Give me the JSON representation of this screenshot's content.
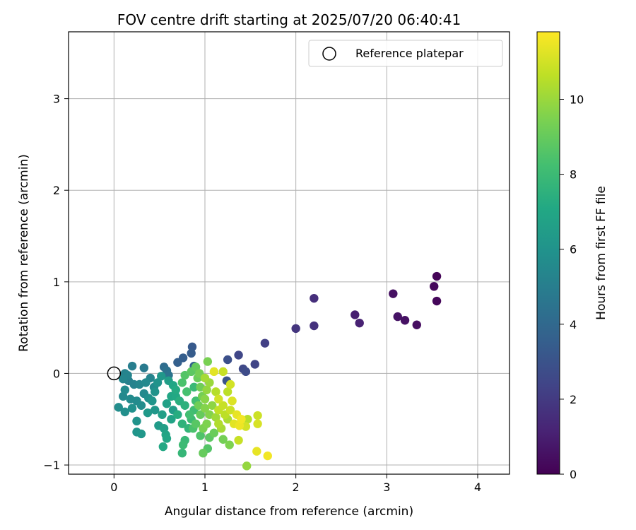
{
  "chart_data": {
    "type": "scatter",
    "title": "FOV centre drift starting at 2025/07/20 06:40:41",
    "xlabel": "Angular distance from reference (arcmin)",
    "ylabel": "Rotation from reference (arcmin)",
    "xlim": [
      -0.5,
      4.35
    ],
    "ylim": [
      -1.1,
      3.73
    ],
    "xticks": [
      0,
      1,
      2,
      3,
      4
    ],
    "yticks": [
      -1,
      0,
      1,
      2,
      3
    ],
    "grid": true,
    "legend": {
      "position": "top-right",
      "entries": [
        "Reference platepar"
      ]
    },
    "reference_point": {
      "x": 0,
      "y": 0,
      "label": "Reference platepar"
    },
    "colorbar": {
      "label": "Hours from first FF file",
      "range": [
        0,
        11.8
      ],
      "ticks": [
        0,
        2,
        4,
        6,
        8,
        10
      ],
      "colormap": "viridis"
    },
    "points": [
      {
        "x": 3.55,
        "y": 1.06,
        "t": 0.15
      },
      {
        "x": 3.52,
        "y": 0.95,
        "t": 0.25
      },
      {
        "x": 3.55,
        "y": 0.79,
        "t": 0.2
      },
      {
        "x": 3.07,
        "y": 0.87,
        "t": 0.5
      },
      {
        "x": 3.12,
        "y": 0.62,
        "t": 0.6
      },
      {
        "x": 3.2,
        "y": 0.58,
        "t": 0.55
      },
      {
        "x": 3.33,
        "y": 0.53,
        "t": 0.45
      },
      {
        "x": 2.65,
        "y": 0.64,
        "t": 1.0
      },
      {
        "x": 2.7,
        "y": 0.55,
        "t": 1.1
      },
      {
        "x": 2.2,
        "y": 0.82,
        "t": 1.6
      },
      {
        "x": 2.2,
        "y": 0.52,
        "t": 1.7
      },
      {
        "x": 2.0,
        "y": 0.49,
        "t": 1.8
      },
      {
        "x": 1.66,
        "y": 0.33,
        "t": 2.2
      },
      {
        "x": 1.37,
        "y": 0.2,
        "t": 2.5
      },
      {
        "x": 1.55,
        "y": 0.1,
        "t": 2.4
      },
      {
        "x": 1.42,
        "y": 0.05,
        "t": 2.6
      },
      {
        "x": 1.45,
        "y": 0.02,
        "t": 2.7
      },
      {
        "x": 1.25,
        "y": 0.15,
        "t": 2.9
      },
      {
        "x": 1.24,
        "y": -0.08,
        "t": 3.0
      },
      {
        "x": 0.86,
        "y": 0.29,
        "t": 3.3
      },
      {
        "x": 0.85,
        "y": 0.22,
        "t": 3.4
      },
      {
        "x": 0.76,
        "y": 0.17,
        "t": 3.5
      },
      {
        "x": 0.7,
        "y": 0.12,
        "t": 3.6
      },
      {
        "x": 0.88,
        "y": 0.08,
        "t": 3.7
      },
      {
        "x": 0.55,
        "y": 0.07,
        "t": 4.2
      },
      {
        "x": 0.58,
        "y": 0.03,
        "t": 4.4
      },
      {
        "x": 0.6,
        "y": -0.02,
        "t": 4.5
      },
      {
        "x": 0.33,
        "y": 0.06,
        "t": 4.8
      },
      {
        "x": 0.2,
        "y": 0.08,
        "t": 5.0
      },
      {
        "x": 0.12,
        "y": 0.0,
        "t": 5.2
      },
      {
        "x": 0.15,
        "y": -0.02,
        "t": 5.3
      },
      {
        "x": 0.1,
        "y": -0.06,
        "t": 5.4
      },
      {
        "x": 0.12,
        "y": -0.18,
        "t": 5.6
      },
      {
        "x": 0.1,
        "y": -0.25,
        "t": 5.5
      },
      {
        "x": 0.05,
        "y": -0.37,
        "t": 5.7
      },
      {
        "x": 0.12,
        "y": -0.42,
        "t": 5.8
      },
      {
        "x": 0.2,
        "y": -0.38,
        "t": 5.9
      },
      {
        "x": 0.25,
        "y": -0.3,
        "t": 5.6
      },
      {
        "x": 0.3,
        "y": -0.35,
        "t": 5.7
      },
      {
        "x": 0.33,
        "y": -0.22,
        "t": 5.5
      },
      {
        "x": 0.28,
        "y": -0.12,
        "t": 5.4
      },
      {
        "x": 0.35,
        "y": -0.1,
        "t": 5.5
      },
      {
        "x": 0.4,
        "y": -0.05,
        "t": 5.3
      },
      {
        "x": 0.44,
        "y": -0.15,
        "t": 5.6
      },
      {
        "x": 0.38,
        "y": -0.27,
        "t": 5.8
      },
      {
        "x": 0.25,
        "y": -0.52,
        "t": 6.0
      },
      {
        "x": 0.25,
        "y": -0.64,
        "t": 6.1
      },
      {
        "x": 0.3,
        "y": -0.66,
        "t": 6.2
      },
      {
        "x": 0.37,
        "y": -0.43,
        "t": 6.3
      },
      {
        "x": 0.45,
        "y": -0.4,
        "t": 6.2
      },
      {
        "x": 0.49,
        "y": -0.57,
        "t": 6.4
      },
      {
        "x": 0.55,
        "y": -0.6,
        "t": 6.6
      },
      {
        "x": 0.57,
        "y": -0.67,
        "t": 6.9
      },
      {
        "x": 0.58,
        "y": -0.71,
        "t": 7.0
      },
      {
        "x": 0.54,
        "y": -0.8,
        "t": 7.1
      },
      {
        "x": 0.63,
        "y": -0.5,
        "t": 6.8
      },
      {
        "x": 0.65,
        "y": -0.4,
        "t": 6.5
      },
      {
        "x": 0.48,
        "y": -0.1,
        "t": 6.0
      },
      {
        "x": 0.52,
        "y": -0.03,
        "t": 6.2
      },
      {
        "x": 0.6,
        "y": -0.08,
        "t": 6.5
      },
      {
        "x": 0.65,
        "y": -0.13,
        "t": 7.0
      },
      {
        "x": 0.68,
        "y": -0.18,
        "t": 7.2
      },
      {
        "x": 0.63,
        "y": -0.25,
        "t": 7.0
      },
      {
        "x": 0.72,
        "y": -0.3,
        "t": 7.4
      },
      {
        "x": 0.78,
        "y": -0.35,
        "t": 7.5
      },
      {
        "x": 0.7,
        "y": -0.45,
        "t": 7.3
      },
      {
        "x": 0.75,
        "y": -0.55,
        "t": 7.6
      },
      {
        "x": 0.82,
        "y": -0.6,
        "t": 7.7
      },
      {
        "x": 0.78,
        "y": -0.73,
        "t": 7.9
      },
      {
        "x": 0.76,
        "y": -0.78,
        "t": 8.0
      },
      {
        "x": 0.75,
        "y": -0.87,
        "t": 7.8
      },
      {
        "x": 0.85,
        "y": -0.5,
        "t": 8.0
      },
      {
        "x": 0.88,
        "y": -0.4,
        "t": 8.1
      },
      {
        "x": 0.9,
        "y": -0.3,
        "t": 8.2
      },
      {
        "x": 0.8,
        "y": -0.2,
        "t": 8.3
      },
      {
        "x": 0.75,
        "y": -0.1,
        "t": 8.4
      },
      {
        "x": 0.78,
        "y": -0.02,
        "t": 8.6
      },
      {
        "x": 0.85,
        "y": 0.02,
        "t": 8.8
      },
      {
        "x": 0.9,
        "y": 0.07,
        "t": 9.0
      },
      {
        "x": 0.92,
        "y": -0.05,
        "t": 9.1
      },
      {
        "x": 0.95,
        "y": -0.15,
        "t": 9.2
      },
      {
        "x": 0.97,
        "y": -0.25,
        "t": 9.3
      },
      {
        "x": 0.93,
        "y": -0.35,
        "t": 9.2
      },
      {
        "x": 0.95,
        "y": -0.45,
        "t": 9.0
      },
      {
        "x": 0.9,
        "y": -0.55,
        "t": 8.7
      },
      {
        "x": 0.98,
        "y": -0.6,
        "t": 9.4
      },
      {
        "x": 0.95,
        "y": -0.68,
        "t": 8.5
      },
      {
        "x": 0.98,
        "y": -0.87,
        "t": 9.0
      },
      {
        "x": 1.03,
        "y": -0.82,
        "t": 8.6
      },
      {
        "x": 1.05,
        "y": -0.7,
        "t": 8.8
      },
      {
        "x": 1.1,
        "y": -0.65,
        "t": 9.1
      },
      {
        "x": 1.02,
        "y": -0.55,
        "t": 9.5
      },
      {
        "x": 1.05,
        "y": -0.45,
        "t": 9.6
      },
      {
        "x": 1.08,
        "y": -0.35,
        "t": 9.8
      },
      {
        "x": 1.0,
        "y": -0.28,
        "t": 9.7
      },
      {
        "x": 1.02,
        "y": -0.18,
        "t": 9.9
      },
      {
        "x": 1.05,
        "y": -0.1,
        "t": 10.0
      },
      {
        "x": 1.0,
        "y": -0.05,
        "t": 10.2
      },
      {
        "x": 1.03,
        "y": 0.13,
        "t": 9.4
      },
      {
        "x": 1.1,
        "y": 0.02,
        "t": 11.3
      },
      {
        "x": 1.2,
        "y": 0.02,
        "t": 10.8
      },
      {
        "x": 1.12,
        "y": -0.2,
        "t": 10.5
      },
      {
        "x": 1.15,
        "y": -0.28,
        "t": 11.0
      },
      {
        "x": 1.2,
        "y": -0.35,
        "t": 10.8
      },
      {
        "x": 1.22,
        "y": -0.45,
        "t": 10.6
      },
      {
        "x": 1.15,
        "y": -0.55,
        "t": 10.4
      },
      {
        "x": 1.18,
        "y": -0.6,
        "t": 10.2
      },
      {
        "x": 1.25,
        "y": -0.5,
        "t": 10.3
      },
      {
        "x": 1.28,
        "y": -0.4,
        "t": 10.9
      },
      {
        "x": 1.3,
        "y": -0.3,
        "t": 11.2
      },
      {
        "x": 1.35,
        "y": -0.45,
        "t": 11.4
      },
      {
        "x": 1.32,
        "y": -0.55,
        "t": 11.3
      },
      {
        "x": 1.4,
        "y": -0.5,
        "t": 11.6
      },
      {
        "x": 1.38,
        "y": -0.57,
        "t": 11.5
      },
      {
        "x": 1.45,
        "y": -0.58,
        "t": 11.0
      },
      {
        "x": 1.47,
        "y": -0.5,
        "t": 10.5
      },
      {
        "x": 1.58,
        "y": -0.46,
        "t": 10.9
      },
      {
        "x": 1.58,
        "y": -0.55,
        "t": 11.1
      },
      {
        "x": 1.37,
        "y": -0.73,
        "t": 10.8
      },
      {
        "x": 1.27,
        "y": -0.78,
        "t": 9.5
      },
      {
        "x": 1.2,
        "y": -0.72,
        "t": 9.3
      },
      {
        "x": 1.57,
        "y": -0.85,
        "t": 11.4
      },
      {
        "x": 1.69,
        "y": -0.9,
        "t": 11.6
      },
      {
        "x": 1.46,
        "y": -1.01,
        "t": 9.9
      },
      {
        "x": 1.25,
        "y": -0.2,
        "t": 10.6
      },
      {
        "x": 1.28,
        "y": -0.12,
        "t": 11.0
      },
      {
        "x": 1.15,
        "y": -0.4,
        "t": 10.7
      },
      {
        "x": 0.88,
        "y": -0.15,
        "t": 7.9
      },
      {
        "x": 0.68,
        "y": -0.25,
        "t": 7.1
      },
      {
        "x": 0.58,
        "y": -0.33,
        "t": 6.7
      },
      {
        "x": 0.42,
        "y": -0.3,
        "t": 6.1
      },
      {
        "x": 0.18,
        "y": -0.28,
        "t": 5.6
      },
      {
        "x": 0.22,
        "y": -0.12,
        "t": 5.2
      },
      {
        "x": 0.16,
        "y": -0.08,
        "t": 5.1
      },
      {
        "x": 0.45,
        "y": -0.2,
        "t": 6.0
      },
      {
        "x": 0.53,
        "y": -0.45,
        "t": 6.6
      },
      {
        "x": 0.83,
        "y": -0.45,
        "t": 8.2
      },
      {
        "x": 0.87,
        "y": -0.6,
        "t": 8.4
      },
      {
        "x": 1.0,
        "y": -0.38,
        "t": 9.6
      },
      {
        "x": 1.12,
        "y": -0.48,
        "t": 10.1
      },
      {
        "x": 0.94,
        "y": 0.0,
        "t": 9.3
      }
    ]
  }
}
